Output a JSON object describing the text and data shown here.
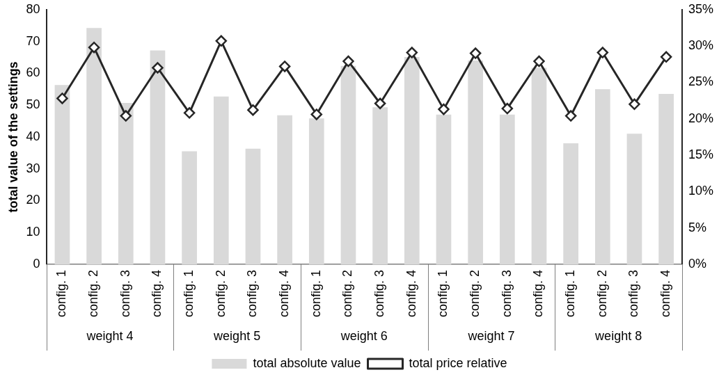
{
  "chart_data": {
    "type": "bar",
    "ylabel": "total value of the settings",
    "categories": [
      "config. 1",
      "config. 2",
      "config. 3",
      "config. 4",
      "config. 1",
      "config. 2",
      "config. 3",
      "config. 4",
      "config. 1",
      "config. 2",
      "config. 3",
      "config. 4",
      "config. 1",
      "config. 2",
      "config. 3",
      "config. 4",
      "config. 1",
      "config. 2",
      "config. 3",
      "config. 4"
    ],
    "annotations": [
      "weight 4",
      "weight 5",
      "weight 6",
      "weight 7",
      "weight 8"
    ],
    "series": [
      {
        "name": "total absolute value",
        "color": "#d9d9d9",
        "values": [
          56.3,
          74.2,
          50.7,
          67.2,
          35.5,
          52.7,
          36.3,
          46.8,
          45.8,
          62.3,
          49.3,
          65.1,
          47,
          64,
          47,
          61.7,
          38,
          55,
          41,
          53.5
        ]
      },
      {
        "name": "total price relative",
        "type": "line",
        "axis": "y2",
        "color": "#262626",
        "values": [
          22.8,
          29.8,
          20.4,
          27.0,
          20.8,
          30.7,
          21.2,
          27.2,
          20.6,
          27.9,
          22.1,
          29.1,
          21.3,
          29.0,
          21.4,
          27.9,
          20.4,
          29.1,
          22.0,
          28.5
        ]
      }
    ],
    "ylim": [
      0,
      80
    ],
    "yticks": [
      0,
      10,
      20,
      30,
      40,
      50,
      60,
      70,
      80
    ],
    "y2lim": [
      0,
      35
    ],
    "y2ticks": [
      {
        "value": 0,
        "label": "0%"
      },
      {
        "value": 5,
        "label": "5%"
      },
      {
        "value": 10,
        "label": "10%"
      },
      {
        "value": 15,
        "label": "15%"
      },
      {
        "value": 20,
        "label": "20%"
      },
      {
        "value": 25,
        "label": "25%"
      },
      {
        "value": 30,
        "label": "30%"
      },
      {
        "value": 35,
        "label": "35%"
      }
    ],
    "marker": "diamond",
    "line_style": "solid",
    "grid": false,
    "legend": "bottom"
  }
}
